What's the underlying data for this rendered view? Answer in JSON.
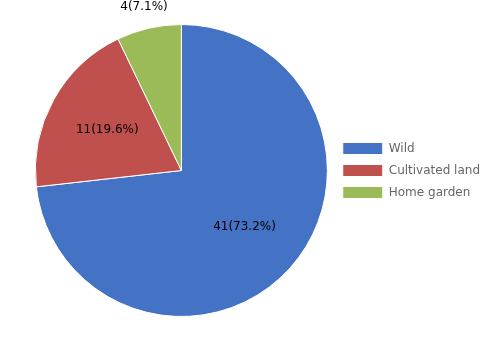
{
  "chart_data": {
    "type": "pie",
    "categories": [
      "Wild",
      "Cultivated land",
      "Home garden"
    ],
    "values": [
      41,
      11,
      4
    ],
    "value_labels": [
      "41(73.2%)",
      "11(19.6%)",
      "4(7.1%)"
    ],
    "colors": [
      "#4472C4",
      "#C0504D",
      "#9BBB59"
    ],
    "data_labels": true,
    "legend": "right"
  }
}
